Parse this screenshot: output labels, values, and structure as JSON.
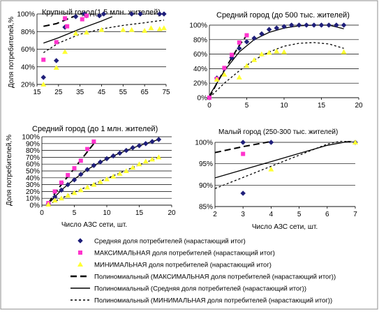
{
  "colors": {
    "avg": "#1f1f7a",
    "max": "#ff33cc",
    "min": "#ffff33",
    "line": "#000000",
    "frame": "#8c8c8c",
    "grid": "#000000"
  },
  "chart_data": [
    {
      "type": "scatter",
      "title": "Крупный город(1,5 млн. жителей)",
      "ylabel": "Доля потребителей,%",
      "xlabel": "",
      "xlim": [
        15,
        75
      ],
      "ylim": [
        0.2,
        1.0
      ],
      "xticks": [
        "15",
        "25",
        "35",
        "45",
        "55",
        "65",
        "75"
      ],
      "yticks": [
        "20%",
        "40%",
        "60%",
        "80%",
        "100%"
      ],
      "grid": "horizontal",
      "series": [
        {
          "name": "Средняя доля потребителей (нарастающий итог)",
          "points": [
            [
              18,
              0.28
            ],
            [
              24,
              0.47
            ],
            [
              28,
              0.85
            ],
            [
              33,
              0.97
            ],
            [
              37,
              1.0
            ],
            [
              38,
              0.98
            ],
            [
              44,
              0.98
            ],
            [
              46,
              1.0
            ],
            [
              59,
              1.0
            ],
            [
              63,
              1.0
            ],
            [
              72,
              1.0
            ],
            [
              74,
              1.0
            ]
          ]
        },
        {
          "name": "МАКСИМАЛЬНАЯ доля потребителей (нарастающий итог)",
          "points": [
            [
              18,
              0.48
            ],
            [
              24,
              0.68
            ],
            [
              28,
              0.95
            ],
            [
              29,
              0.86
            ],
            [
              36,
              0.94
            ],
            [
              38,
              0.98
            ]
          ]
        },
        {
          "name": "МИНИМАЛЬНАЯ доля потребителей (нарастающий итог)",
          "points": [
            [
              18,
              0.2
            ],
            [
              24,
              0.39
            ],
            [
              28,
              0.57
            ],
            [
              33,
              0.78
            ],
            [
              38,
              0.79
            ],
            [
              45,
              0.82
            ],
            [
              55,
              0.82
            ],
            [
              59,
              0.82
            ],
            [
              65,
              0.81
            ],
            [
              68,
              0.84
            ],
            [
              72,
              0.83
            ],
            [
              74,
              0.84
            ]
          ]
        }
      ],
      "trendlines": [
        {
          "name": "Полиномиальный (МАКСИМАЛЬНАЯ доля потребителей (нарастающий итог))",
          "style": "longdash",
          "x": [
            18,
            24,
            28,
            33,
            38
          ],
          "y": [
            0.86,
            0.89,
            0.93,
            0.98,
            1.02
          ]
        },
        {
          "name": "Полиномиальный (Средняя доля потребителей (нарастающий итог))",
          "style": "solid",
          "x": [
            18,
            25,
            35,
            45,
            50
          ],
          "y": [
            0.67,
            0.73,
            0.83,
            0.92,
            0.97
          ]
        },
        {
          "name": "Полиномиальный (МИНИМАЛЬНАЯ доля потребителей (нарастающий итог))",
          "style": "shortdash",
          "x": [
            18,
            25,
            35,
            45,
            55,
            65,
            74
          ],
          "y": [
            0.56,
            0.67,
            0.77,
            0.83,
            0.87,
            0.9,
            0.93
          ]
        }
      ]
    },
    {
      "type": "scatter",
      "title": "Средний город  (до 500 тыс. жителей)",
      "ylabel": "",
      "xlabel": "",
      "xlim": [
        0,
        20
      ],
      "ylim": [
        0,
        1.0
      ],
      "xticks": [
        "0",
        "5",
        "10",
        "15",
        "20"
      ],
      "yticks": [
        "0%",
        "20%",
        "40%",
        "60%",
        "80%",
        "100%"
      ],
      "grid": "horizontal",
      "series": [
        {
          "name": "Средняя доля потребителей (нарастающий итог)",
          "points": [
            [
              0,
              0
            ],
            [
              1,
              0.27
            ],
            [
              2,
              0.4
            ],
            [
              3,
              0.55
            ],
            [
              4,
              0.68
            ],
            [
              5,
              0.77
            ],
            [
              6,
              0.82
            ],
            [
              7,
              0.88
            ],
            [
              8,
              0.94
            ],
            [
              9,
              0.96
            ],
            [
              10,
              0.98
            ],
            [
              11,
              1.0
            ],
            [
              12,
              1.0
            ],
            [
              13,
              1.0
            ],
            [
              14,
              1.0
            ],
            [
              15,
              1.0
            ],
            [
              16,
              1.0
            ],
            [
              17,
              1.0
            ],
            [
              18,
              1.0
            ]
          ]
        },
        {
          "name": "МАКСИМАЛЬНАЯ доля потребителей (нарастающий итог)",
          "points": [
            [
              0,
              0
            ],
            [
              1,
              0.26
            ],
            [
              2,
              0.41
            ],
            [
              3,
              0.59
            ],
            [
              4,
              0.76
            ],
            [
              5,
              0.86
            ]
          ]
        },
        {
          "name": "МИНИМАЛЬНАЯ доля потребителей (нарастающий итог)",
          "points": [
            [
              1,
              0.25
            ],
            [
              2,
              0.32
            ],
            [
              4,
              0.28
            ],
            [
              5,
              0.44
            ],
            [
              6,
              0.52
            ],
            [
              7,
              0.6
            ],
            [
              8,
              0.62
            ],
            [
              9,
              0.64
            ],
            [
              10,
              0.63
            ],
            [
              18,
              0.63
            ]
          ]
        }
      ],
      "trendlines": [
        {
          "name": "Полиномиальный (МАКСИМАЛЬНАЯ доля потребителей (нарастающий итог))",
          "style": "longdash",
          "x": [
            0,
            1,
            2,
            3,
            4,
            5
          ],
          "y": [
            0.0,
            0.2,
            0.38,
            0.55,
            0.72,
            0.86
          ]
        },
        {
          "name": "Полиномиальный (Средняя доля потребителей (нарастающий итог))",
          "style": "solid",
          "x": [
            0,
            2,
            4,
            6,
            8,
            10,
            12,
            14,
            16,
            18
          ],
          "y": [
            0.03,
            0.37,
            0.63,
            0.8,
            0.9,
            0.96,
            0.99,
            1.0,
            1.0,
            0.95
          ]
        },
        {
          "name": "Полиномиальный (МИНИМАЛЬНАЯ доля потребителей (нарастающий итог))",
          "style": "shortdash",
          "x": [
            0,
            2,
            4,
            6,
            8,
            10,
            12,
            14,
            16,
            18
          ],
          "y": [
            0.0,
            0.2,
            0.37,
            0.52,
            0.63,
            0.71,
            0.75,
            0.76,
            0.74,
            0.68
          ]
        }
      ]
    },
    {
      "type": "scatter",
      "title": "Средний город  (до 1 млн. жителей)",
      "ylabel": "Доля потребителей,%",
      "xlabel": "Число АЗС сети, шт.",
      "xlim": [
        0,
        20
      ],
      "ylim": [
        0,
        1.0
      ],
      "xticks": [
        "0",
        "5",
        "10",
        "15",
        "20"
      ],
      "yticks": [
        "0%",
        "10%",
        "20%",
        "30%",
        "40%",
        "50%",
        "60%",
        "70%",
        "80%",
        "90%",
        "100%"
      ],
      "grid": "horizontal",
      "series": [
        {
          "name": "Средняя доля потребителей (нарастающий итог)",
          "points": [
            [
              1,
              0.02
            ],
            [
              2,
              0.12
            ],
            [
              3,
              0.22
            ],
            [
              4,
              0.3
            ],
            [
              5,
              0.37
            ],
            [
              6,
              0.45
            ],
            [
              7,
              0.52
            ],
            [
              8,
              0.58
            ],
            [
              9,
              0.63
            ],
            [
              10,
              0.68
            ],
            [
              11,
              0.72
            ],
            [
              12,
              0.76
            ],
            [
              13,
              0.8
            ],
            [
              14,
              0.84
            ],
            [
              15,
              0.87
            ],
            [
              16,
              0.9
            ],
            [
              17,
              0.93
            ],
            [
              18,
              0.96
            ]
          ]
        },
        {
          "name": "МАКСИМАЛЬНАЯ доля потребителей (нарастающий итог)",
          "points": [
            [
              1,
              0.03
            ],
            [
              2,
              0.2
            ],
            [
              3,
              0.33
            ],
            [
              4,
              0.44
            ],
            [
              5,
              0.54
            ],
            [
              6,
              0.65
            ],
            [
              7,
              0.82
            ],
            [
              8,
              0.93
            ]
          ]
        },
        {
          "name": "МИНИМАЛЬНАЯ доля потребителей (нарастающий итог)",
          "points": [
            [
              1,
              0.01
            ],
            [
              2,
              0.07
            ],
            [
              3,
              0.1
            ],
            [
              4,
              0.14
            ],
            [
              5,
              0.18
            ],
            [
              6,
              0.22
            ],
            [
              7,
              0.26
            ],
            [
              8,
              0.3
            ],
            [
              9,
              0.34
            ],
            [
              10,
              0.38
            ],
            [
              11,
              0.42
            ],
            [
              12,
              0.46
            ],
            [
              13,
              0.5
            ],
            [
              14,
              0.55
            ],
            [
              15,
              0.6
            ],
            [
              16,
              0.64
            ],
            [
              17,
              0.67
            ],
            [
              18,
              0.7
            ]
          ]
        }
      ],
      "trendlines": [
        {
          "name": "Полиномиальный (МАКСИМАЛЬНАЯ доля потребителей (нарастающий итог))",
          "style": "longdash",
          "x": [
            1,
            2,
            3,
            4,
            5,
            6,
            7,
            8
          ],
          "y": [
            0.03,
            0.17,
            0.3,
            0.42,
            0.54,
            0.66,
            0.78,
            0.9
          ]
        },
        {
          "name": "Полиномиальный (Средняя доля потребителей (нарастающий итог))",
          "style": "solid",
          "x": [
            1,
            3,
            5,
            7,
            9,
            11,
            13,
            15,
            17,
            18
          ],
          "y": [
            0.02,
            0.22,
            0.38,
            0.52,
            0.63,
            0.72,
            0.8,
            0.87,
            0.93,
            0.96
          ]
        },
        {
          "name": "Полиномиальный (МИНИМАЛЬНАЯ доля потребителей (нарастающий итог))",
          "style": "shortdash",
          "x": [
            1,
            3,
            5,
            7,
            9,
            11,
            13,
            15,
            17,
            18
          ],
          "y": [
            0.01,
            0.1,
            0.19,
            0.27,
            0.35,
            0.43,
            0.51,
            0.59,
            0.66,
            0.7
          ]
        }
      ]
    },
    {
      "type": "scatter",
      "title": "Малый город (250-300 тыс. жителей)",
      "ylabel": "",
      "xlabel": "Число АЗС сети, шт.",
      "xlim": [
        2,
        7
      ],
      "ylim": [
        0.85,
        1.0
      ],
      "xticks": [
        "2",
        "3",
        "4",
        "5",
        "6",
        "7"
      ],
      "yticks": [
        "85%",
        "90%",
        "95%",
        "100%"
      ],
      "grid": "horizontal",
      "series": [
        {
          "name": "Средняя доля потребителей (нарастающий итог)",
          "points": [
            [
              3,
              0.881
            ],
            [
              3,
              1.0
            ],
            [
              4,
              1.0
            ],
            [
              7,
              1.0
            ]
          ]
        },
        {
          "name": "МАКСИМАЛЬНАЯ доля потребителей (нарастающий итог)",
          "points": [
            [
              3,
              0.973
            ]
          ]
        },
        {
          "name": "МИНИМАЛЬНАЯ доля потребителей (нарастающий итог)",
          "points": [
            [
              4,
              0.937
            ],
            [
              7,
              1.0
            ]
          ]
        }
      ],
      "trendlines": [
        {
          "name": "Полиномиальный (МАКСИМАЛЬНАЯ доля потребителей (нарастающий итог))",
          "style": "longdash",
          "x": [
            2,
            3,
            4
          ],
          "y": [
            0.976,
            0.99,
            1.002
          ]
        },
        {
          "name": "Полиномиальный (Средняя доля потребителей (нарастающий итог))",
          "style": "solid",
          "x": [
            2,
            3,
            4,
            5,
            6,
            7
          ],
          "y": [
            0.917,
            0.936,
            0.955,
            0.974,
            0.993,
            1.005
          ]
        },
        {
          "name": "Полиномиальный (МИНИМАЛЬНАЯ доля потребителей (нарастающий итог))",
          "style": "shortdash",
          "x": [
            2,
            3,
            4,
            5,
            6,
            6.5,
            7
          ],
          "y": [
            0.892,
            0.918,
            0.944,
            0.97,
            0.996,
            1.003,
            1.0
          ]
        }
      ]
    }
  ],
  "legend": {
    "items": [
      {
        "marker": "diamond",
        "color_key": "avg",
        "label": "Средняя доля потребителей (нарастающий итог)"
      },
      {
        "marker": "square",
        "color_key": "max",
        "label": "МАКСИМАЛЬНАЯ доля потребителей (нарастающий итог)"
      },
      {
        "marker": "triangle",
        "color_key": "min",
        "label": "МИНИМАЛЬНАЯ доля потребителей (нарастающий итог)"
      },
      {
        "marker": "longdash",
        "color_key": "line",
        "label": "Полиномиальный (МАКСИМАЛЬНАЯ доля потребителей (нарастающий итог))"
      },
      {
        "marker": "solid",
        "color_key": "line",
        "label": "Полиномиальный (Средняя доля потребителей (нарастающий итог))"
      },
      {
        "marker": "shortdash",
        "color_key": "line",
        "label": "Полиномиальный (МИНИМАЛЬНАЯ доля потребителей (нарастающий итог))"
      }
    ]
  }
}
